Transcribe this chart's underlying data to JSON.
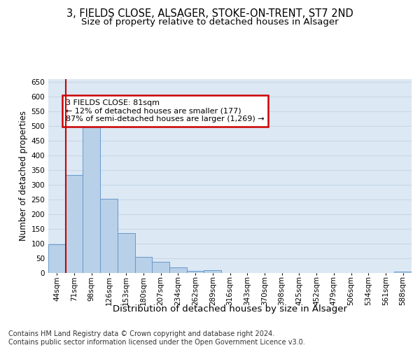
{
  "title_line1": "3, FIELDS CLOSE, ALSAGER, STOKE-ON-TRENT, ST7 2ND",
  "title_line2": "Size of property relative to detached houses in Alsager",
  "xlabel": "Distribution of detached houses by size in Alsager",
  "ylabel": "Number of detached properties",
  "categories": [
    "44sqm",
    "71sqm",
    "98sqm",
    "126sqm",
    "153sqm",
    "180sqm",
    "207sqm",
    "234sqm",
    "262sqm",
    "289sqm",
    "316sqm",
    "343sqm",
    "370sqm",
    "398sqm",
    "425sqm",
    "452sqm",
    "479sqm",
    "506sqm",
    "534sqm",
    "561sqm",
    "588sqm"
  ],
  "values": [
    97,
    333,
    503,
    252,
    136,
    54,
    38,
    20,
    6,
    9,
    0,
    0,
    0,
    0,
    0,
    0,
    0,
    0,
    0,
    0,
    4
  ],
  "bar_color": "#b8d0e8",
  "bar_edge_color": "#6699cc",
  "property_line_color": "#cc0000",
  "annotation_text": "3 FIELDS CLOSE: 81sqm\n← 12% of detached houses are smaller (177)\n87% of semi-detached houses are larger (1,269) →",
  "annotation_box_color": "#ffffff",
  "annotation_box_edge": "#cc0000",
  "ylim": [
    0,
    660
  ],
  "yticks": [
    0,
    50,
    100,
    150,
    200,
    250,
    300,
    350,
    400,
    450,
    500,
    550,
    600,
    650
  ],
  "grid_color": "#c8d8e8",
  "background_color": "#dce8f4",
  "footer_text": "Contains HM Land Registry data © Crown copyright and database right 2024.\nContains public sector information licensed under the Open Government Licence v3.0.",
  "title_fontsize": 10.5,
  "subtitle_fontsize": 9.5,
  "xlabel_fontsize": 9.5,
  "ylabel_fontsize": 8.5,
  "tick_fontsize": 7.5,
  "annot_fontsize": 8,
  "footer_fontsize": 7
}
